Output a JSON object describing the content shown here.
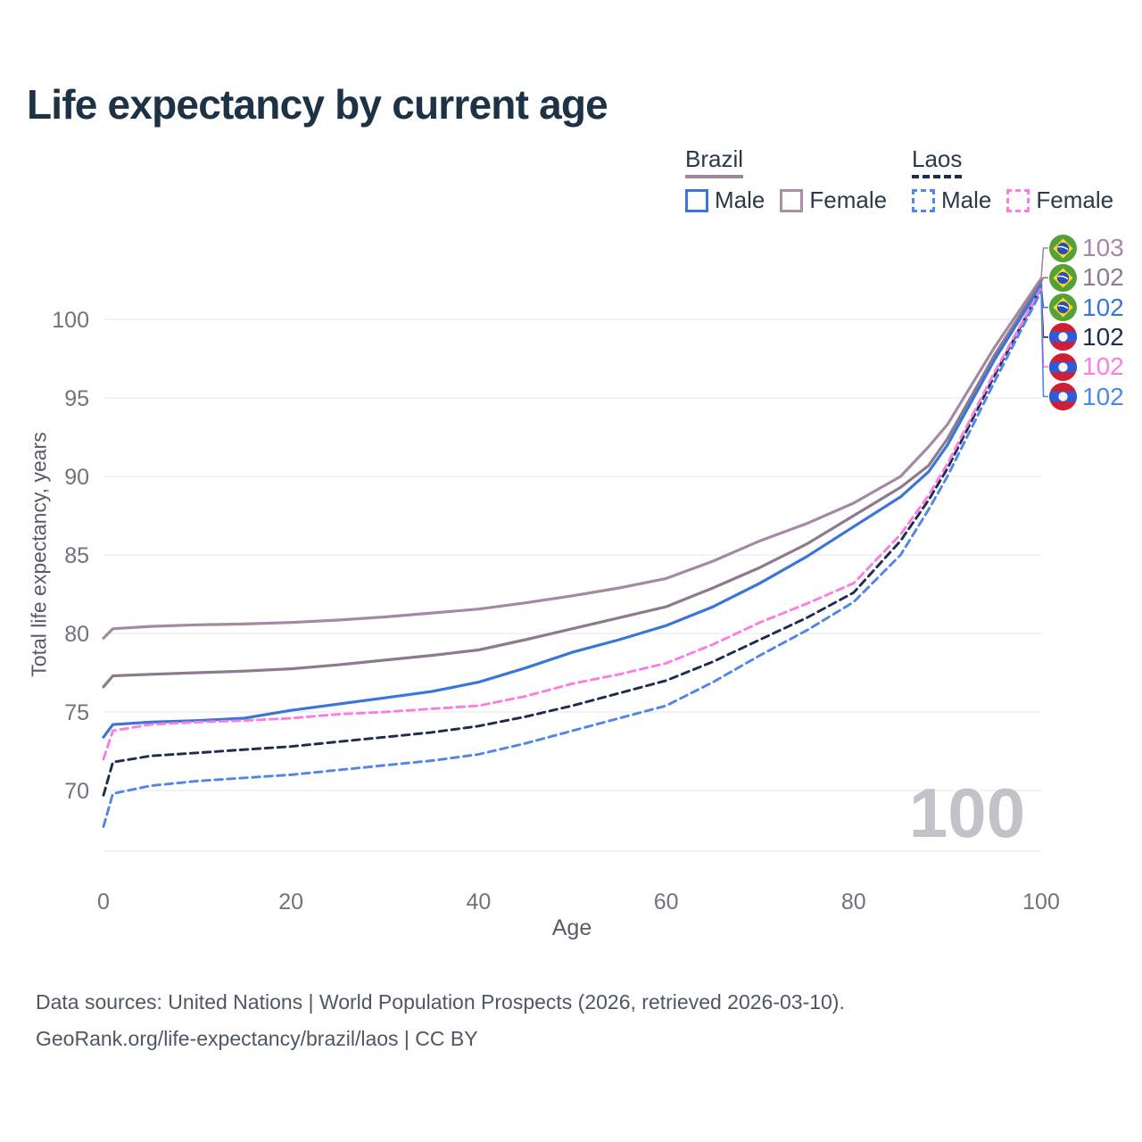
{
  "page": {
    "title": "Life expectancy by current age"
  },
  "legend": {
    "groups": [
      {
        "country": "Brazil",
        "line_style": "solid",
        "line_color": "#a0869d",
        "items": [
          {
            "label": "Male",
            "style": "solid",
            "color": "#3a76d8"
          },
          {
            "label": "Female",
            "style": "solid",
            "color": "#ab8fa9"
          }
        ]
      },
      {
        "country": "Laos",
        "line_style": "dashed",
        "line_color": "#1d2c4f",
        "items": [
          {
            "label": "Male",
            "style": "dashed",
            "color": "#4f86e8"
          },
          {
            "label": "Female",
            "style": "dashed",
            "color": "#fa7de1"
          }
        ]
      }
    ]
  },
  "chart_data": {
    "type": "line",
    "title": "Life expectancy by current age",
    "xlabel": "Age",
    "ylabel": "Total life expectancy, years",
    "x_ticks": [
      0,
      20,
      40,
      60,
      80,
      100
    ],
    "y_ticks": [
      70,
      75,
      80,
      85,
      90,
      95,
      100
    ],
    "xlim": [
      0,
      100
    ],
    "ylim": [
      66,
      104
    ],
    "grid": "horizontal",
    "legend_position": "top-right",
    "watermark": "100",
    "series": [
      {
        "name": "Brazil — Female",
        "country": "Brazil",
        "sex": "Female",
        "flag": "brazil",
        "color": "#a389a4",
        "dash": false,
        "end_label": "103",
        "points": [
          [
            0,
            79.7
          ],
          [
            1,
            80.3
          ],
          [
            5,
            80.45
          ],
          [
            10,
            80.55
          ],
          [
            15,
            80.6
          ],
          [
            20,
            80.7
          ],
          [
            25,
            80.85
          ],
          [
            30,
            81.05
          ],
          [
            35,
            81.3
          ],
          [
            40,
            81.55
          ],
          [
            45,
            81.95
          ],
          [
            50,
            82.4
          ],
          [
            55,
            82.9
          ],
          [
            60,
            83.5
          ],
          [
            65,
            84.6
          ],
          [
            70,
            85.9
          ],
          [
            75,
            87.0
          ],
          [
            80,
            88.3
          ],
          [
            85,
            90.0
          ],
          [
            88,
            91.9
          ],
          [
            90,
            93.3
          ],
          [
            95,
            98.2
          ],
          [
            100,
            102.6
          ]
        ]
      },
      {
        "name": "Brazil",
        "country": "Brazil",
        "sex": "Both",
        "flag": "brazil",
        "color": "#8d7a8e",
        "dash": false,
        "end_label": "102",
        "points": [
          [
            0,
            76.6
          ],
          [
            1,
            77.3
          ],
          [
            5,
            77.4
          ],
          [
            10,
            77.5
          ],
          [
            15,
            77.6
          ],
          [
            20,
            77.75
          ],
          [
            25,
            78.0
          ],
          [
            30,
            78.3
          ],
          [
            35,
            78.6
          ],
          [
            40,
            78.95
          ],
          [
            45,
            79.6
          ],
          [
            50,
            80.3
          ],
          [
            55,
            81.0
          ],
          [
            60,
            81.7
          ],
          [
            65,
            82.9
          ],
          [
            70,
            84.2
          ],
          [
            75,
            85.7
          ],
          [
            80,
            87.5
          ],
          [
            85,
            89.3
          ],
          [
            88,
            90.7
          ],
          [
            90,
            92.4
          ],
          [
            95,
            97.7
          ],
          [
            100,
            102.4
          ]
        ]
      },
      {
        "name": "Brazil — Male",
        "country": "Brazil",
        "sex": "Male",
        "flag": "brazil",
        "color": "#3a76d8",
        "dash": false,
        "end_label": "102",
        "points": [
          [
            0,
            73.4
          ],
          [
            1,
            74.2
          ],
          [
            5,
            74.35
          ],
          [
            10,
            74.45
          ],
          [
            15,
            74.6
          ],
          [
            20,
            75.1
          ],
          [
            25,
            75.5
          ],
          [
            30,
            75.9
          ],
          [
            35,
            76.3
          ],
          [
            40,
            76.9
          ],
          [
            45,
            77.8
          ],
          [
            50,
            78.8
          ],
          [
            55,
            79.6
          ],
          [
            60,
            80.5
          ],
          [
            65,
            81.7
          ],
          [
            70,
            83.2
          ],
          [
            75,
            84.9
          ],
          [
            80,
            86.8
          ],
          [
            85,
            88.7
          ],
          [
            88,
            90.3
          ],
          [
            90,
            92.0
          ],
          [
            95,
            97.4
          ],
          [
            100,
            102.2
          ]
        ]
      },
      {
        "name": "Laos",
        "country": "Laos",
        "sex": "Both",
        "flag": "laos",
        "color": "#1d2c4f",
        "dash": true,
        "end_label": "102",
        "points": [
          [
            0,
            69.7
          ],
          [
            1,
            71.8
          ],
          [
            5,
            72.2
          ],
          [
            10,
            72.4
          ],
          [
            15,
            72.6
          ],
          [
            20,
            72.8
          ],
          [
            25,
            73.1
          ],
          [
            30,
            73.4
          ],
          [
            35,
            73.7
          ],
          [
            40,
            74.1
          ],
          [
            45,
            74.7
          ],
          [
            50,
            75.4
          ],
          [
            55,
            76.2
          ],
          [
            60,
            77.0
          ],
          [
            65,
            78.2
          ],
          [
            70,
            79.6
          ],
          [
            75,
            81.0
          ],
          [
            80,
            82.6
          ],
          [
            85,
            85.9
          ],
          [
            88,
            88.5
          ],
          [
            90,
            90.5
          ],
          [
            95,
            96.4
          ],
          [
            100,
            102.0
          ]
        ]
      },
      {
        "name": "Laos — Female",
        "country": "Laos",
        "sex": "Female",
        "flag": "laos",
        "color": "#fa7de1",
        "dash": true,
        "end_label": "102",
        "points": [
          [
            0,
            72.0
          ],
          [
            1,
            73.8
          ],
          [
            5,
            74.2
          ],
          [
            10,
            74.35
          ],
          [
            15,
            74.45
          ],
          [
            20,
            74.6
          ],
          [
            25,
            74.85
          ],
          [
            30,
            75.0
          ],
          [
            35,
            75.2
          ],
          [
            40,
            75.4
          ],
          [
            45,
            76.0
          ],
          [
            50,
            76.8
          ],
          [
            55,
            77.4
          ],
          [
            60,
            78.1
          ],
          [
            65,
            79.3
          ],
          [
            70,
            80.7
          ],
          [
            75,
            81.9
          ],
          [
            80,
            83.2
          ],
          [
            85,
            86.3
          ],
          [
            88,
            88.8
          ],
          [
            90,
            90.8
          ],
          [
            95,
            96.6
          ],
          [
            100,
            102.0
          ]
        ]
      },
      {
        "name": "Laos — Male",
        "country": "Laos",
        "sex": "Male",
        "flag": "laos",
        "color": "#4f86e8",
        "dash": true,
        "end_label": "102",
        "points": [
          [
            0,
            67.7
          ],
          [
            1,
            69.8
          ],
          [
            5,
            70.3
          ],
          [
            10,
            70.6
          ],
          [
            15,
            70.8
          ],
          [
            20,
            71.0
          ],
          [
            25,
            71.3
          ],
          [
            30,
            71.6
          ],
          [
            35,
            71.9
          ],
          [
            40,
            72.3
          ],
          [
            45,
            73.0
          ],
          [
            50,
            73.8
          ],
          [
            55,
            74.6
          ],
          [
            60,
            75.4
          ],
          [
            65,
            76.9
          ],
          [
            70,
            78.6
          ],
          [
            75,
            80.2
          ],
          [
            80,
            82.0
          ],
          [
            85,
            85.0
          ],
          [
            88,
            87.9
          ],
          [
            90,
            90.0
          ],
          [
            95,
            96.0
          ],
          [
            100,
            101.8
          ]
        ]
      }
    ]
  },
  "footer": {
    "line1": "Data sources: United Nations | World Population Prospects (2026, retrieved 2026-03-10).",
    "line2": "GeoRank.org/life-expectancy/brazil/laos | CC BY"
  }
}
